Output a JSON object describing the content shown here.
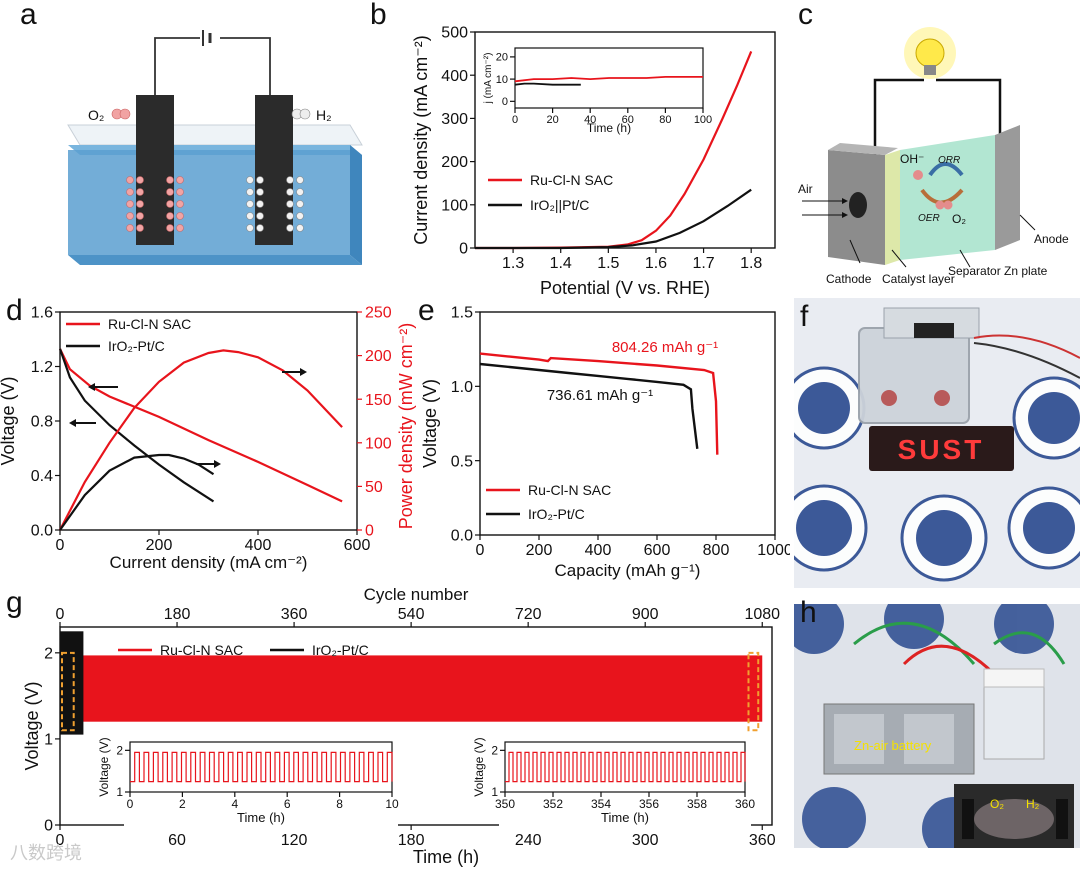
{
  "panel_letters": {
    "a": "a",
    "b": "b",
    "c": "c",
    "d": "d",
    "e": "e",
    "f": "f",
    "g": "g",
    "h": "h"
  },
  "colors": {
    "red": "#e8141c",
    "black": "#111111",
    "water": "#5a9fd0",
    "orange": "#f0a030"
  },
  "panel_a": {
    "o2": "O₂",
    "h2": "H₂"
  },
  "panel_c": {
    "oh": "OH⁻",
    "orr": "ORR",
    "oer": "OER",
    "o2": "O₂",
    "air": "Air",
    "anode": "Anode",
    "cathode": "Cathode",
    "catalyst": "Catalyst layer",
    "separator": "Separator",
    "znplate": "Zn plate"
  },
  "panel_f": {
    "led_text": "SUST"
  },
  "panel_h": {
    "battery_label": "Zn-air battery",
    "o2": "O₂",
    "h2": "H₂"
  },
  "watermark": "八数跨境",
  "chart_data": [
    {
      "id": "b",
      "type": "line",
      "xlabel": "Potential (V vs. RHE)",
      "ylabel": "Current density (mA cm⁻²)",
      "xlim": [
        1.22,
        1.85
      ],
      "ylim": [
        0,
        500
      ],
      "xticks": [
        1.3,
        1.4,
        1.5,
        1.6,
        1.7,
        1.8
      ],
      "yticks": [
        0,
        100,
        200,
        300,
        400,
        500
      ],
      "series": [
        {
          "name": "Ru-Cl-N SAC",
          "color": "#e8141c",
          "x": [
            1.22,
            1.3,
            1.4,
            1.5,
            1.54,
            1.57,
            1.6,
            1.63,
            1.66,
            1.7,
            1.74,
            1.77,
            1.8
          ],
          "y": [
            0,
            0,
            1,
            3,
            8,
            18,
            40,
            75,
            125,
            205,
            300,
            375,
            455
          ]
        },
        {
          "name": "IrO₂||Pt/C",
          "color": "#111111",
          "x": [
            1.22,
            1.3,
            1.4,
            1.5,
            1.55,
            1.6,
            1.65,
            1.7,
            1.75,
            1.8
          ],
          "y": [
            0,
            0,
            0,
            2,
            6,
            15,
            35,
            62,
            97,
            135
          ]
        }
      ],
      "inset": {
        "xlabel": "Time (h)",
        "ylabel": "j (mA cm⁻²)",
        "xlim": [
          0,
          100
        ],
        "ylim": [
          -3,
          24
        ],
        "xticks": [
          0,
          20,
          40,
          60,
          80,
          100
        ],
        "yticks": [
          0,
          10,
          20
        ],
        "series": [
          {
            "name": "Ru-Cl-N SAC",
            "color": "#e8141c",
            "x": [
              0,
              10,
              20,
              30,
              40,
              50,
              60,
              70,
              80,
              90,
              100
            ],
            "y": [
              9,
              10,
              10,
              10.5,
              10,
              10.5,
              10.5,
              10.5,
              11,
              11,
              11
            ]
          },
          {
            "name": "IrO₂||Pt/C",
            "color": "#111111",
            "x": [
              0,
              5,
              10,
              20,
              30,
              35
            ],
            "y": [
              7.5,
              8,
              8,
              7.5,
              7.5,
              7.5
            ]
          }
        ]
      }
    },
    {
      "id": "d",
      "type": "line",
      "xlabel": "Current density (mA cm⁻²)",
      "ylabel": "Voltage (V)",
      "y2label": "Power density (mW cm⁻²)",
      "xlim": [
        0,
        600
      ],
      "ylim": [
        0,
        1.6
      ],
      "y2lim": [
        0,
        250
      ],
      "xticks": [
        0,
        200,
        400,
        600
      ],
      "yticks": [
        0.0,
        0.4,
        0.8,
        1.2,
        1.6
      ],
      "y2ticks": [
        0,
        50,
        100,
        150,
        200,
        250
      ],
      "voltage_series": [
        {
          "name": "Ru-Cl-N SAC",
          "color": "#e8141c",
          "x": [
            0,
            20,
            60,
            100,
            200,
            300,
            400,
            500,
            570
          ],
          "y": [
            1.33,
            1.18,
            1.06,
            0.98,
            0.83,
            0.66,
            0.5,
            0.33,
            0.21
          ]
        },
        {
          "name": "IrO₂-Pt/C",
          "color": "#111111",
          "x": [
            0,
            20,
            50,
            100,
            150,
            200,
            250,
            310
          ],
          "y": [
            1.33,
            1.12,
            0.95,
            0.77,
            0.62,
            0.48,
            0.35,
            0.21
          ]
        }
      ],
      "power_series": [
        {
          "name": "Ru-Cl-N SAC",
          "color": "#e8141c",
          "x": [
            0,
            50,
            100,
            150,
            200,
            250,
            300,
            330,
            360,
            400,
            450,
            500,
            570
          ],
          "y": [
            0,
            55,
            100,
            140,
            170,
            192,
            203,
            206,
            204,
            198,
            183,
            160,
            118
          ]
        },
        {
          "name": "IrO₂-Pt/C",
          "color": "#111111",
          "x": [
            0,
            50,
            100,
            150,
            200,
            220,
            250,
            280,
            310
          ],
          "y": [
            0,
            40,
            68,
            83,
            86,
            86,
            82,
            75,
            64
          ]
        }
      ],
      "legend": [
        "Ru-Cl-N SAC",
        "IrO₂-Pt/C"
      ]
    },
    {
      "id": "e",
      "type": "line",
      "xlabel": "Capacity (mAh g⁻¹)",
      "ylabel": "Voltage (V)",
      "xlim": [
        0,
        1000
      ],
      "ylim": [
        0,
        1.5
      ],
      "xticks": [
        0,
        200,
        400,
        600,
        800,
        1000
      ],
      "yticks": [
        0.0,
        0.5,
        1.0,
        1.5
      ],
      "series": [
        {
          "name": "Ru-Cl-N SAC",
          "color": "#e8141c",
          "x": [
            0,
            100,
            200,
            230,
            240,
            400,
            600,
            760,
            790,
            800,
            804.26
          ],
          "y": [
            1.22,
            1.2,
            1.18,
            1.17,
            1.19,
            1.17,
            1.14,
            1.11,
            1.09,
            0.9,
            0.54
          ]
        },
        {
          "name": "IrO₂-Pt/C",
          "color": "#111111",
          "x": [
            0,
            100,
            200,
            300,
            400,
            500,
            600,
            690,
            715,
            720,
            736.61
          ],
          "y": [
            1.15,
            1.13,
            1.11,
            1.09,
            1.07,
            1.05,
            1.03,
            1.01,
            0.98,
            0.85,
            0.58
          ]
        }
      ],
      "annotations": [
        "804.26 mAh g⁻¹",
        "736.61 mAh g⁻¹"
      ]
    },
    {
      "id": "g",
      "type": "area",
      "xlabel": "Time (h)",
      "ylabel": "Voltage (V)",
      "x2label": "Cycle number",
      "xlim": [
        0,
        365
      ],
      "ylim": [
        0,
        2.3
      ],
      "xticks": [
        0,
        60,
        120,
        180,
        240,
        300,
        360
      ],
      "x2ticks": [
        0,
        180,
        360,
        540,
        720,
        900,
        1080
      ],
      "yticks": [
        0,
        1,
        2
      ],
      "series": [
        {
          "name": "Ru-Cl-N SAC",
          "color": "#e8141c",
          "x_range": [
            0,
            360
          ],
          "y_band": [
            1.2,
            1.97
          ]
        },
        {
          "name": "IrO₂-Pt/C",
          "color": "#111111",
          "x_range": [
            0,
            12
          ],
          "y_band": [
            1.05,
            2.25
          ]
        }
      ],
      "insets": [
        {
          "xlabel": "Time (h)",
          "ylabel": "Voltage (V)",
          "xlim": [
            0,
            10
          ],
          "ylim": [
            1,
            2.2
          ],
          "xticks": [
            0,
            2,
            4,
            6,
            8,
            10
          ],
          "yticks": [
            1,
            2
          ],
          "cycles": 28
        },
        {
          "xlabel": "Time (h)",
          "ylabel": "Voltage (V)",
          "xlim": [
            350,
            360
          ],
          "ylim": [
            1,
            2.2
          ],
          "xticks": [
            350,
            352,
            354,
            356,
            358,
            360
          ],
          "yticks": [
            1,
            2
          ],
          "cycles": 30
        }
      ]
    }
  ]
}
